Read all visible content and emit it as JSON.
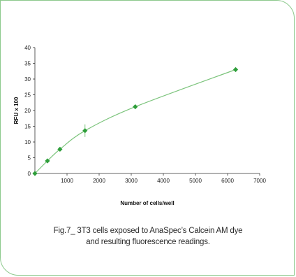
{
  "caption": {
    "line1": "Fig.7_ 3T3 cells exposed to AnaSpec’s Calcein AM dye",
    "line2": "and resulting fluorescence readings."
  },
  "colors": {
    "frame": "#8cc98c",
    "curve": "#7cc47c",
    "marker": "#2e9e3a",
    "axis": "#333333"
  },
  "chart_data": {
    "type": "scatter",
    "xlabel": "Number of cells/well",
    "ylabel": "RFU x 100",
    "xlim": [
      0,
      7000
    ],
    "ylim": [
      0,
      40
    ],
    "x_ticks": [
      1000,
      2000,
      3000,
      4000,
      5000,
      6000,
      7000
    ],
    "y_ticks": [
      0,
      5,
      10,
      15,
      20,
      25,
      30,
      35,
      40
    ],
    "grid": false,
    "legend": "none",
    "series": [
      {
        "x": [
          0,
          390,
          780,
          1560,
          3125,
          6250
        ],
        "y": [
          0,
          4,
          7.7,
          13.6,
          21.2,
          33
        ],
        "error": [
          0,
          0.4,
          0.6,
          2,
          0.6,
          0.4
        ],
        "marker": "diamond",
        "trendline": "smooth"
      }
    ]
  }
}
